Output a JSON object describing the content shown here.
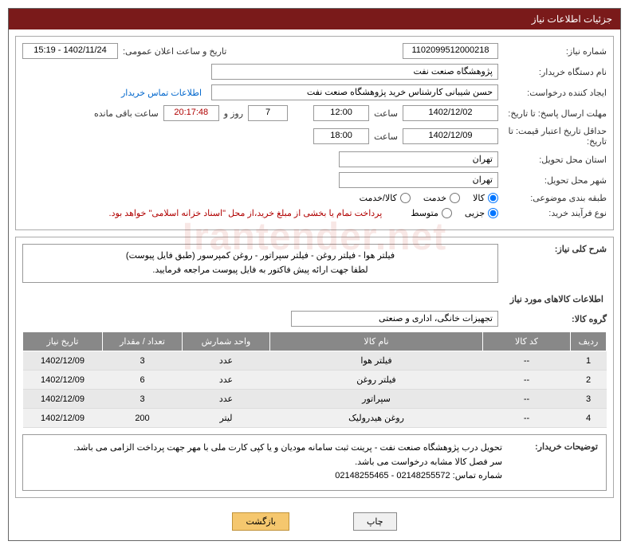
{
  "header": {
    "title": "جزئیات اطلاعات نیاز"
  },
  "fields": {
    "need_number_label": "شماره نیاز:",
    "need_number": "1102099512000218",
    "announce_date_label": "تاریخ و ساعت اعلان عمومی:",
    "announce_date": "1402/11/24 - 15:19",
    "buyer_org_label": "نام دستگاه خریدار:",
    "buyer_org": "پژوهشگاه صنعت نفت",
    "requester_label": "ایجاد کننده درخواست:",
    "requester": "حسن شیبانی کارشناس خرید پژوهشگاه صنعت نفت",
    "contact_link": "اطلاعات تماس خریدار",
    "reply_deadline_label": "مهلت ارسال پاسخ: تا تاریخ:",
    "reply_date": "1402/12/02",
    "time_label": "ساعت",
    "reply_time": "12:00",
    "days": "7",
    "days_label": "روز و",
    "countdown": "20:17:48",
    "remain_label": "ساعت باقی مانده",
    "price_validity_label": "حداقل تاریخ اعتبار قیمت: تا تاریخ:",
    "price_date": "1402/12/09",
    "price_time": "18:00",
    "province_label": "استان محل تحویل:",
    "province": "تهران",
    "city_label": "شهر محل تحویل:",
    "city": "تهران",
    "category_label": "طبقه بندی موضوعی:",
    "cat_goods": "کالا",
    "cat_service": "خدمت",
    "cat_goods_service": "کالا/خدمت",
    "purchase_type_label": "نوع فرآیند خرید:",
    "pt_small": "جزیی",
    "pt_medium": "متوسط",
    "payment_note": "پرداخت تمام یا بخشی از مبلغ خرید،از محل \"اسناد خزانه اسلامی\" خواهد بود.",
    "need_desc_label": "شرح کلی نیاز:",
    "need_desc_line1": "فیلتر هوا - فیلتر روغن - فیلتر سپراتور - روغن کمپرسور   (طبق فایل پیوست)",
    "need_desc_line2": "لطفا جهت ارائه پیش فاکتور به فایل پیوست مراجعه فرمایید.",
    "items_title": "اطلاعات کالاهای مورد نیاز",
    "group_label": "گروه کالا:",
    "group_value": "تجهیزات خانگی، اداری و صنعتی"
  },
  "table": {
    "headers": {
      "row": "ردیف",
      "code": "کد کالا",
      "name": "نام کالا",
      "unit": "واحد شمارش",
      "qty": "تعداد / مقدار",
      "date": "تاریخ نیاز"
    },
    "rows": [
      {
        "idx": "1",
        "code": "--",
        "name": "فیلتر هوا",
        "unit": "عدد",
        "qty": "3",
        "date": "1402/12/09"
      },
      {
        "idx": "2",
        "code": "--",
        "name": "فیلتر روغن",
        "unit": "عدد",
        "qty": "6",
        "date": "1402/12/09"
      },
      {
        "idx": "3",
        "code": "--",
        "name": "سپراتور",
        "unit": "عدد",
        "qty": "3",
        "date": "1402/12/09"
      },
      {
        "idx": "4",
        "code": "--",
        "name": "روغن هیدرولیک",
        "unit": "لیتر",
        "qty": "200",
        "date": "1402/12/09"
      }
    ]
  },
  "notes": {
    "label": "توضیحات خریدار:",
    "line1": "تحویل درب پژوهشگاه صنعت نفت - پرینت ثبت سامانه مودیان و یا کپی کارت ملی با مهر جهت پرداخت الزامی می باشد.",
    "line2": "سر فصل کالا مشابه درخواست می باشد.",
    "line3": "شماره تماس: 02148255572 - 02148255465"
  },
  "buttons": {
    "print": "چاپ",
    "back": "بازگشت"
  },
  "watermark": "Irantender.net"
}
